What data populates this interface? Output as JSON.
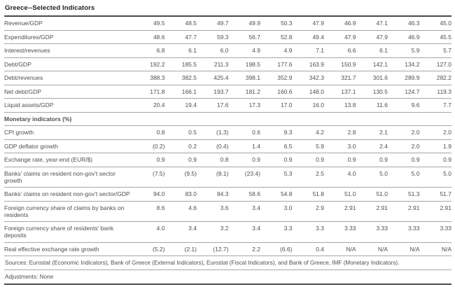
{
  "title": "Greece--Selected Indicators",
  "colors": {
    "heading_text": "#1e1e1e",
    "body_text": "#4f4f4f",
    "rule_gray": "#a6a6a6",
    "rule_dark": "#4a4a4a",
    "background": "#ffffff"
  },
  "table": {
    "num_value_columns": 10,
    "sections": [
      {
        "header": null,
        "rows": [
          {
            "label": "Revenue/GDP",
            "values": [
              "49.5",
              "48.5",
              "49.7",
              "49.9",
              "50.3",
              "47.9",
              "46.9",
              "47.1",
              "46.3",
              "45.0"
            ]
          },
          {
            "label": "Expenditures/GDP",
            "values": [
              "48.6",
              "47.7",
              "59.3",
              "56.7",
              "52.8",
              "49.4",
              "47.9",
              "47.9",
              "46.9",
              "45.5"
            ]
          },
          {
            "label": "Interest/revenues",
            "values": [
              "6.8",
              "6.1",
              "6.0",
              "4.9",
              "4.9",
              "7.1",
              "6.6",
              "6.1",
              "5.9",
              "5.7"
            ]
          },
          {
            "label": "Debt/GDP",
            "values": [
              "192.2",
              "185.5",
              "211.3",
              "198.5",
              "177.6",
              "163.9",
              "150.9",
              "142.1",
              "134.2",
              "127.0"
            ]
          },
          {
            "label": "Debt/revenues",
            "values": [
              "388.3",
              "382.5",
              "425.4",
              "398.1",
              "352.9",
              "342.3",
              "321.7",
              "301.6",
              "289.9",
              "282.2"
            ]
          },
          {
            "label": "Net debt/GDP",
            "values": [
              "171.8",
              "166.1",
              "193.7",
              "181.2",
              "160.6",
              "148.0",
              "137.1",
              "130.5",
              "124.7",
              "119.3"
            ]
          },
          {
            "label": "Liquid assets/GDP",
            "values": [
              "20.4",
              "19.4",
              "17.6",
              "17.3",
              "17.0",
              "16.0",
              "13.8",
              "11.6",
              "9.6",
              "7.7"
            ]
          }
        ]
      },
      {
        "header": "Monetary indicators (%)",
        "rows": [
          {
            "label": "CPI growth",
            "values": [
              "0.8",
              "0.5",
              "(1.3)",
              "0.6",
              "9.3",
              "4.2",
              "2.8",
              "2.1",
              "2.0",
              "2.0"
            ]
          },
          {
            "label": "GDP deflator growth",
            "values": [
              "(0.2)",
              "0.2",
              "(0.4)",
              "1.4",
              "6.5",
              "5.9",
              "3.0",
              "2.4",
              "2.0",
              "1.9"
            ]
          },
          {
            "label": "Exchange rate, year-end (EUR/$)",
            "values": [
              "0.9",
              "0.9",
              "0.8",
              "0.9",
              "0.9",
              "0.9",
              "0.9",
              "0.9",
              "0.9",
              "0.9"
            ]
          },
          {
            "label": "Banks’ claims on resident non-gov’t sector growth",
            "values": [
              "(7.5)",
              "(9.5)",
              "(8.1)",
              "(23.4)",
              "5.3",
              "2.5",
              "4.0",
              "5.0",
              "5.0",
              "5.0"
            ]
          },
          {
            "label": "Banks’ claims on resident non-gov’t sector/GDP",
            "values": [
              "94.0",
              "83.0",
              "84.3",
              "58.6",
              "54.8",
              "51.8",
              "51.0",
              "51.0",
              "51.3",
              "51.7"
            ]
          },
          {
            "label": "Foreign currency share of claims by banks on residents",
            "values": [
              "8.6",
              "4.6",
              "3.6",
              "3.4",
              "3.0",
              "2.9",
              "2.91",
              "2.91",
              "2.91",
              "2.91"
            ]
          },
          {
            "label": "Foreign currency share of residents’ bank deposits",
            "values": [
              "4.0",
              "3.4",
              "3.2",
              "3.4",
              "3.3",
              "3.3",
              "3.33",
              "3.33",
              "3.33",
              "3.33"
            ]
          },
          {
            "label": "Real effective exchange rate growth",
            "values": [
              "(5.2)",
              "(2.1)",
              "(12.7)",
              "2.2",
              "(6.6)",
              "0.4",
              "N/A",
              "N/A",
              "N/A",
              "N/A"
            ]
          }
        ]
      }
    ]
  },
  "footer": {
    "sources": "Sources: Eurostat (Economic Indicators), Bank of Greece (External Indicators), Eurostat (Fiscal Indicators), and Bank of Greece, IMF (Monetary Indicators).",
    "adjustments": "Adjustments: None"
  }
}
